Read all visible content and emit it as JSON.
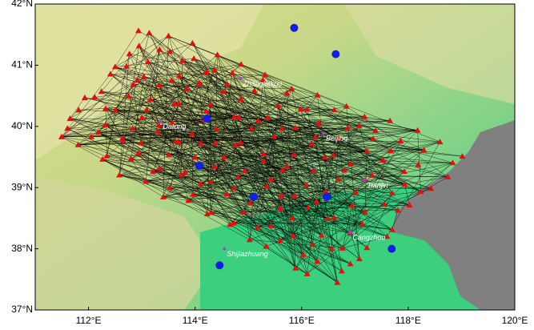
{
  "map": {
    "xlim": [
      111,
      120
    ],
    "ylim": [
      37,
      42
    ],
    "xticks": [
      {
        "value": 112,
        "label": "112°E"
      },
      {
        "value": 114,
        "label": "114°E"
      },
      {
        "value": 116,
        "label": "116°E"
      },
      {
        "value": 118,
        "label": "118°E"
      },
      {
        "value": 120,
        "label": "120°E"
      }
    ],
    "yticks": [
      {
        "value": 37,
        "label": "37°N"
      },
      {
        "value": 38,
        "label": "38°N"
      },
      {
        "value": 39,
        "label": "39°N"
      },
      {
        "value": 40,
        "label": "40°N"
      },
      {
        "value": 41,
        "label": "41°N"
      },
      {
        "value": 42,
        "label": "42°N"
      }
    ],
    "cities": [
      {
        "name": "Zhangjiakou",
        "lon": 114.85,
        "lat": 40.78
      },
      {
        "name": "Datong",
        "lon": 113.35,
        "lat": 40.08
      },
      {
        "name": "Beijing",
        "lon": 116.41,
        "lat": 39.89
      },
      {
        "name": "Tianjin",
        "lon": 117.18,
        "lat": 39.12
      },
      {
        "name": "Cangzhou",
        "lon": 116.91,
        "lat": 38.27
      },
      {
        "name": "Shijiazhuang",
        "lon": 114.55,
        "lat": 38.0
      }
    ],
    "blue_stations": [
      {
        "lon": 115.86,
        "lat": 41.61
      },
      {
        "lon": 116.64,
        "lat": 41.18
      },
      {
        "lon": 114.22,
        "lat": 40.13
      },
      {
        "lon": 114.08,
        "lat": 39.36
      },
      {
        "lon": 115.1,
        "lat": 38.85
      },
      {
        "lon": 116.47,
        "lat": 38.85
      },
      {
        "lon": 117.69,
        "lat": 38.0
      },
      {
        "lon": 114.46,
        "lat": 37.73
      }
    ]
  }
}
